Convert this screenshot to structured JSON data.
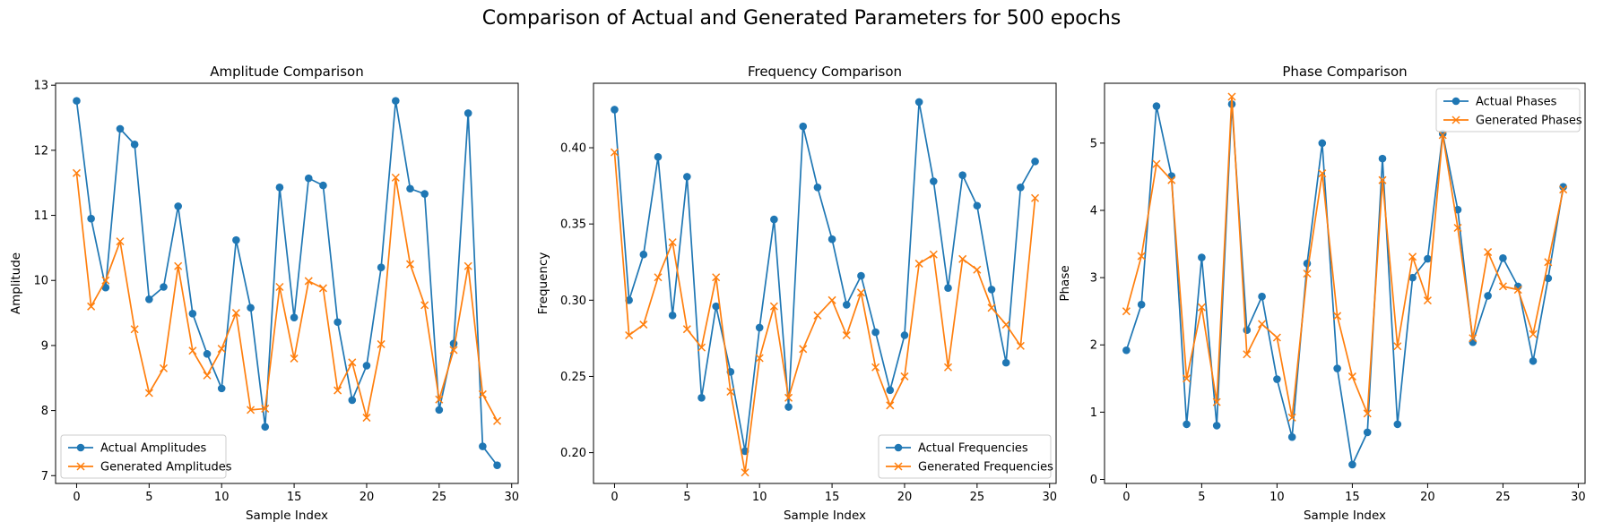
{
  "figure": {
    "suptitle": "Comparison of Actual and Generated Parameters for 500 epochs"
  },
  "colors": {
    "actual": "#1f77b4",
    "generated": "#ff7f0e",
    "legend_border": "#cccccc"
  },
  "chart_data": [
    {
      "type": "line",
      "title": "Amplitude Comparison",
      "xlabel": "Sample Index",
      "ylabel": "Amplitude",
      "xlim": [
        -1.45,
        30.45
      ],
      "ylim": [
        6.88,
        13.03
      ],
      "xticks": [
        0,
        5,
        10,
        15,
        20,
        25,
        30
      ],
      "yticks": [
        7,
        8,
        9,
        10,
        11,
        12,
        13
      ],
      "grid": false,
      "legend_position": "lower-left",
      "x": [
        0,
        1,
        2,
        3,
        4,
        5,
        6,
        7,
        8,
        9,
        10,
        11,
        12,
        13,
        14,
        15,
        16,
        17,
        18,
        19,
        20,
        21,
        22,
        23,
        24,
        25,
        26,
        27,
        28,
        29
      ],
      "series": [
        {
          "name": "Actual Amplitudes",
          "marker": "circle",
          "values": [
            12.76,
            10.95,
            9.89,
            12.33,
            12.09,
            9.71,
            9.9,
            11.14,
            9.49,
            8.87,
            8.34,
            10.62,
            9.58,
            7.75,
            11.43,
            9.43,
            11.57,
            11.46,
            9.36,
            8.16,
            8.69,
            10.2,
            12.76,
            11.41,
            11.33,
            8.01,
            9.03,
            12.57,
            7.45,
            7.16
          ]
        },
        {
          "name": "Generated Amplitudes",
          "marker": "x",
          "values": [
            11.65,
            9.6,
            10.0,
            10.6,
            9.25,
            8.27,
            8.65,
            10.22,
            8.92,
            8.54,
            8.95,
            9.5,
            8.01,
            8.03,
            9.9,
            8.8,
            9.99,
            9.88,
            8.31,
            8.74,
            7.89,
            9.02,
            11.58,
            10.25,
            9.62,
            8.17,
            8.93,
            10.22,
            8.25,
            7.84
          ]
        }
      ]
    },
    {
      "type": "line",
      "title": "Frequency Comparison",
      "xlabel": "Sample Index",
      "ylabel": "Frequency",
      "xlim": [
        -1.45,
        30.45
      ],
      "ylim": [
        0.1798,
        0.4423
      ],
      "xticks": [
        0,
        5,
        10,
        15,
        20,
        25,
        30
      ],
      "yticks": [
        0.2,
        0.25,
        0.3,
        0.35,
        0.4
      ],
      "ytick_labels": [
        "0.20",
        "0.25",
        "0.30",
        "0.35",
        "0.40"
      ],
      "grid": false,
      "legend_position": "lower-right",
      "x": [
        0,
        1,
        2,
        3,
        4,
        5,
        6,
        7,
        8,
        9,
        10,
        11,
        12,
        13,
        14,
        15,
        16,
        17,
        18,
        19,
        20,
        21,
        22,
        23,
        24,
        25,
        26,
        27,
        28,
        29
      ],
      "series": [
        {
          "name": "Actual Frequencies",
          "marker": "circle",
          "values": [
            0.425,
            0.3,
            0.33,
            0.394,
            0.29,
            0.381,
            0.236,
            0.296,
            0.253,
            0.201,
            0.282,
            0.353,
            0.23,
            0.414,
            0.374,
            0.34,
            0.297,
            0.316,
            0.279,
            0.241,
            0.277,
            0.43,
            0.378,
            0.308,
            0.382,
            0.362,
            0.307,
            0.259,
            0.374,
            0.391
          ]
        },
        {
          "name": "Generated Frequencies",
          "marker": "x",
          "values": [
            0.397,
            0.277,
            0.284,
            0.315,
            0.338,
            0.281,
            0.269,
            0.315,
            0.24,
            0.187,
            0.262,
            0.296,
            0.236,
            0.268,
            0.29,
            0.3,
            0.277,
            0.305,
            0.256,
            0.231,
            0.25,
            0.324,
            0.33,
            0.256,
            0.327,
            0.32,
            0.295,
            0.284,
            0.27,
            0.367
          ]
        }
      ]
    },
    {
      "type": "line",
      "title": "Phase Comparison",
      "xlabel": "Sample Index",
      "ylabel": "Phase",
      "xlim": [
        -1.45,
        30.45
      ],
      "ylim": [
        -0.06,
        5.89
      ],
      "xticks": [
        0,
        5,
        10,
        15,
        20,
        25,
        30
      ],
      "yticks": [
        0,
        1,
        2,
        3,
        4,
        5
      ],
      "grid": false,
      "legend_position": "top-right",
      "x": [
        0,
        1,
        2,
        3,
        4,
        5,
        6,
        7,
        8,
        9,
        10,
        11,
        12,
        13,
        14,
        15,
        16,
        17,
        18,
        19,
        20,
        21,
        22,
        23,
        24,
        25,
        26,
        27,
        28,
        29
      ],
      "series": [
        {
          "name": "Actual Phases",
          "marker": "circle",
          "values": [
            1.92,
            2.6,
            5.55,
            4.51,
            0.82,
            3.3,
            0.8,
            5.58,
            2.22,
            2.72,
            1.49,
            0.63,
            3.21,
            5.0,
            1.65,
            0.22,
            0.7,
            4.77,
            0.82,
            3.0,
            3.28,
            5.14,
            4.01,
            2.04,
            2.73,
            3.29,
            2.87,
            1.76,
            2.99,
            4.35
          ]
        },
        {
          "name": "Generated Phases",
          "marker": "x",
          "values": [
            2.5,
            3.32,
            4.69,
            4.45,
            1.5,
            2.56,
            1.15,
            5.69,
            1.86,
            2.31,
            2.11,
            0.92,
            3.06,
            4.55,
            2.43,
            1.53,
            0.98,
            4.45,
            1.98,
            3.31,
            2.66,
            5.12,
            3.74,
            2.1,
            3.38,
            2.87,
            2.82,
            2.16,
            3.23,
            4.31
          ]
        }
      ]
    }
  ]
}
